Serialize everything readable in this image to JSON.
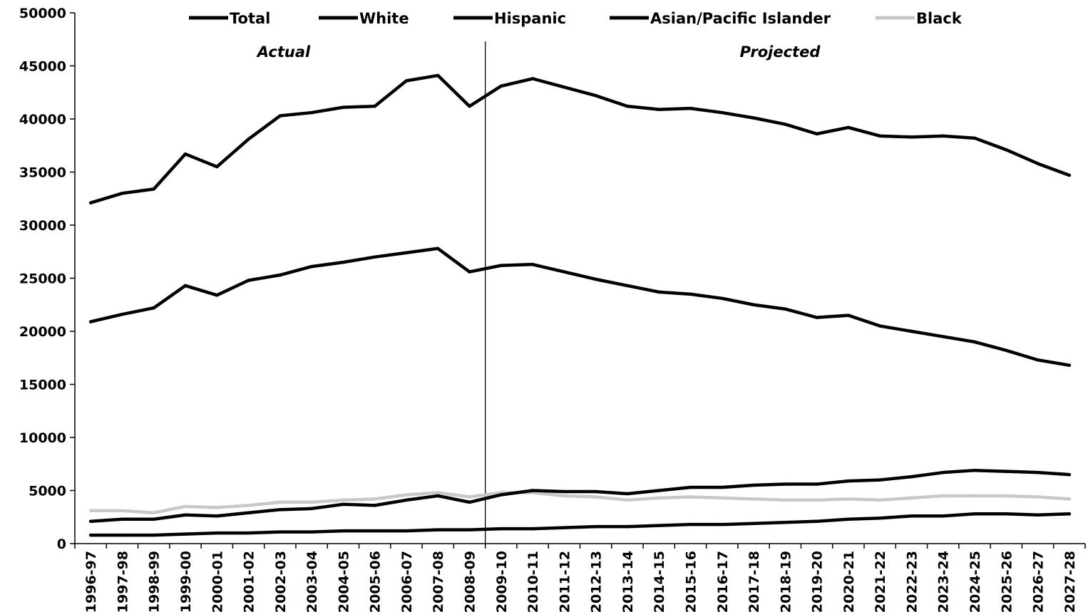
{
  "chart_data": {
    "type": "line",
    "title": "",
    "xlabel": "",
    "ylabel": "",
    "ylim": [
      0,
      50000
    ],
    "yticks": [
      0,
      5000,
      10000,
      15000,
      20000,
      25000,
      30000,
      35000,
      40000,
      45000,
      50000
    ],
    "grid": false,
    "legend_position": "top",
    "categories": [
      "1996-97",
      "1997-98",
      "1998-99",
      "1999-00",
      "2000-01",
      "2001-02",
      "2002-03",
      "2003-04",
      "2004-05",
      "2005-06",
      "2006-07",
      "2007-08",
      "2008-09",
      "2009-10",
      "2010-11",
      "2011-12",
      "2012-13",
      "2013-14",
      "2014-15",
      "2015-16",
      "2016-17",
      "2017-18",
      "2018-19",
      "2019-20",
      "2020-21",
      "2021-22",
      "2022-23",
      "2023-24",
      "2024-25",
      "2025-26",
      "2026-27",
      "2027-28"
    ],
    "series": [
      {
        "name": "Total",
        "color": "#000000",
        "values": [
          32100,
          33000,
          33400,
          36700,
          35500,
          38100,
          40300,
          40600,
          41100,
          41200,
          43600,
          44100,
          41200,
          43100,
          43800,
          43000,
          42200,
          41200,
          40900,
          41000,
          40600,
          40100,
          39500,
          38600,
          39200,
          38400,
          38300,
          38400,
          38200,
          37100,
          35800,
          34700
        ]
      },
      {
        "name": "White",
        "color": "#000000",
        "values": [
          20900,
          21600,
          22200,
          24300,
          23400,
          24800,
          25300,
          26100,
          26500,
          27000,
          27400,
          27800,
          25600,
          26200,
          26300,
          25600,
          24900,
          24300,
          23700,
          23500,
          23100,
          22500,
          22100,
          21300,
          21500,
          20500,
          20000,
          19500,
          19000,
          18200,
          17300,
          16800
        ]
      },
      {
        "name": "Hispanic",
        "color": "#000000",
        "values": [
          2100,
          2300,
          2300,
          2700,
          2600,
          2900,
          3200,
          3300,
          3700,
          3600,
          4100,
          4500,
          3900,
          4600,
          5000,
          4900,
          4900,
          4700,
          5000,
          5300,
          5300,
          5500,
          5600,
          5600,
          5900,
          6000,
          6300,
          6700,
          6900,
          6800,
          6700,
          6500
        ]
      },
      {
        "name": "Asian/Pacific Islander",
        "color": "#000000",
        "values": [
          800,
          800,
          800,
          900,
          1000,
          1000,
          1100,
          1100,
          1200,
          1200,
          1200,
          1300,
          1300,
          1400,
          1400,
          1500,
          1600,
          1600,
          1700,
          1800,
          1800,
          1900,
          2000,
          2100,
          2300,
          2400,
          2600,
          2600,
          2800,
          2800,
          2700,
          2800
        ]
      },
      {
        "name": "Black",
        "color": "#c8c8c8",
        "values": [
          3100,
          3100,
          2900,
          3500,
          3400,
          3600,
          3900,
          3900,
          4100,
          4200,
          4600,
          4800,
          4400,
          4800,
          4800,
          4500,
          4400,
          4100,
          4300,
          4400,
          4300,
          4200,
          4100,
          4100,
          4200,
          4100,
          4300,
          4500,
          4500,
          4500,
          4400,
          4200
        ]
      }
    ],
    "annotations": [
      {
        "text": "Actual"
      },
      {
        "text": "Projected"
      }
    ],
    "divider_after_category": "2008-09"
  }
}
